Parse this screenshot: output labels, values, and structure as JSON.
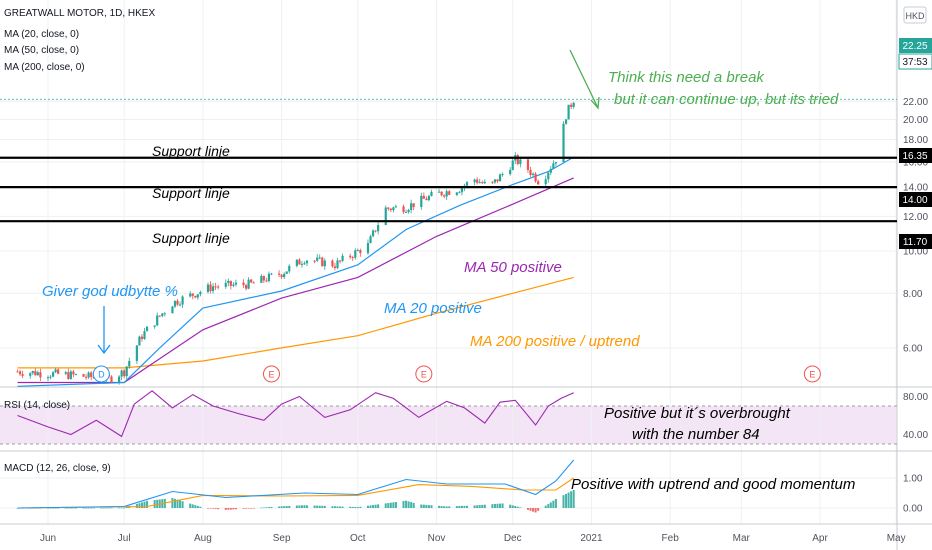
{
  "header": {
    "symbol_line": "GREATWALL MOTOR, 1D, HKEX",
    "ma20": "MA (20, close, 0)",
    "ma50": "MA (50, close, 0)",
    "ma200": "MA (200, close, 0)",
    "currency": "HKD"
  },
  "badges": {
    "price": "22.25",
    "countdown": "37:53",
    "support1": "16.35",
    "support2": "14.00",
    "support3": "11.70"
  },
  "annotations": {
    "support_label": "Support linje",
    "break_line1": "Think this need a break",
    "break_line2": "but it can continue up, but its tried",
    "ma50": "MA 50 positive",
    "ma20": "MA 20 positive",
    "ma200": "MA 200 positive / uptrend",
    "dividend": "Giver god udbytte %",
    "rsi_line1": "Positive but it´s overbrought",
    "rsi_line2": "with the number 84",
    "macd": "Positive with uptrend and good momentum"
  },
  "events": {
    "dividend": "D",
    "earnings": "E"
  },
  "colors": {
    "up": "#26a69a",
    "down": "#ef5350",
    "ma20": "#2196f3",
    "ma50": "#9c27b0",
    "ma200": "#ff9800",
    "support": "#000000",
    "anno_green": "#4caf50",
    "anno_purple": "#9c27b0",
    "anno_blue": "#2196f3",
    "anno_orange": "#ff9800",
    "rsi_band": "#f3e5f5"
  },
  "chart_data": [
    {
      "type": "candlestick",
      "title": "GREATWALL MOTOR, 1D, HKEX",
      "x_ticks": [
        "Jun",
        "Jul",
        "Aug",
        "Sep",
        "Oct",
        "Nov",
        "Dec",
        "2021",
        "Feb",
        "Mar",
        "Apr",
        "May"
      ],
      "y_ticks": [
        "6.00",
        "8.00",
        "10.00",
        "12.00",
        "14.00",
        "16.00",
        "18.00",
        "20.00",
        "22.00"
      ],
      "close_path": [
        [
          "2020-05-20",
          5.3
        ],
        [
          "2020-06-10",
          5.2
        ],
        [
          "2020-06-25",
          5.1
        ],
        [
          "2020-07-01",
          5.3
        ],
        [
          "2020-07-08",
          6.4
        ],
        [
          "2020-07-20",
          7.6
        ],
        [
          "2020-08-05",
          8.3
        ],
        [
          "2020-08-20",
          8.4
        ],
        [
          "2020-09-01",
          8.9
        ],
        [
          "2020-09-10",
          9.6
        ],
        [
          "2020-09-22",
          9.3
        ],
        [
          "2020-10-05",
          10.3
        ],
        [
          "2020-10-12",
          12.5
        ],
        [
          "2020-10-20",
          12.6
        ],
        [
          "2020-11-01",
          13.5
        ],
        [
          "2020-11-10",
          13.9
        ],
        [
          "2020-11-16",
          14.6
        ],
        [
          "2020-11-22",
          14.0
        ],
        [
          "2020-11-28",
          15.2
        ],
        [
          "2020-12-02",
          16.2
        ],
        [
          "2020-12-07",
          15.4
        ],
        [
          "2020-12-12",
          14.3
        ],
        [
          "2020-12-15",
          15.3
        ],
        [
          "2020-12-19",
          16.6
        ],
        [
          "2020-12-22",
          20.5
        ],
        [
          "2020-12-25",
          22.25
        ]
      ],
      "ma20_path": [
        [
          "2020-05-20",
          4.9
        ],
        [
          "2020-07-01",
          5.0
        ],
        [
          "2020-07-15",
          6.0
        ],
        [
          "2020-08-01",
          7.4
        ],
        [
          "2020-09-01",
          8.1
        ],
        [
          "2020-10-01",
          9.3
        ],
        [
          "2020-10-20",
          11.2
        ],
        [
          "2020-11-10",
          12.7
        ],
        [
          "2020-12-01",
          14.2
        ],
        [
          "2020-12-15",
          15.2
        ],
        [
          "2020-12-25",
          16.4
        ]
      ],
      "ma50_path": [
        [
          "2020-05-20",
          5.0
        ],
        [
          "2020-07-01",
          5.0
        ],
        [
          "2020-08-01",
          6.6
        ],
        [
          "2020-09-01",
          7.8
        ],
        [
          "2020-10-01",
          8.7
        ],
        [
          "2020-11-01",
          10.8
        ],
        [
          "2020-12-01",
          12.8
        ],
        [
          "2020-12-25",
          14.7
        ]
      ],
      "ma200_path": [
        [
          "2020-05-20",
          5.4
        ],
        [
          "2020-07-01",
          5.4
        ],
        [
          "2020-08-01",
          5.6
        ],
        [
          "2020-09-01",
          6.0
        ],
        [
          "2020-10-01",
          6.4
        ],
        [
          "2020-11-01",
          7.2
        ],
        [
          "2020-12-01",
          8.0
        ],
        [
          "2020-12-25",
          8.7
        ]
      ],
      "support_levels": [
        16.35,
        14.0,
        11.7
      ],
      "last_price": 22.25,
      "dividend_date": "2020-06-22",
      "earnings_dates": [
        "2020-08-28",
        "2020-10-27",
        "2021-03-29"
      ]
    },
    {
      "type": "line",
      "title": "RSI (14, close)",
      "y_ticks": [
        "40.00",
        "80.00"
      ],
      "band": [
        30,
        70
      ],
      "series": [
        {
          "name": "RSI",
          "points": [
            [
              "2020-05-20",
              60
            ],
            [
              "2020-06-01",
              48
            ],
            [
              "2020-06-10",
              40
            ],
            [
              "2020-06-20",
              55
            ],
            [
              "2020-06-30",
              38
            ],
            [
              "2020-07-05",
              72
            ],
            [
              "2020-07-12",
              86
            ],
            [
              "2020-07-20",
              68
            ],
            [
              "2020-07-28",
              82
            ],
            [
              "2020-08-05",
              70
            ],
            [
              "2020-08-15",
              62
            ],
            [
              "2020-08-25",
              55
            ],
            [
              "2020-09-01",
              72
            ],
            [
              "2020-09-08",
              80
            ],
            [
              "2020-09-18",
              58
            ],
            [
              "2020-09-28",
              66
            ],
            [
              "2020-10-08",
              84
            ],
            [
              "2020-10-15",
              78
            ],
            [
              "2020-10-25",
              58
            ],
            [
              "2020-11-05",
              75
            ],
            [
              "2020-11-12",
              68
            ],
            [
              "2020-11-20",
              52
            ],
            [
              "2020-11-26",
              74
            ],
            [
              "2020-12-02",
              76
            ],
            [
              "2020-12-10",
              50
            ],
            [
              "2020-12-15",
              70
            ],
            [
              "2020-12-20",
              78
            ],
            [
              "2020-12-25",
              84
            ]
          ]
        }
      ]
    },
    {
      "type": "line",
      "title": "MACD (12, 26, close, 9)",
      "y_ticks": [
        "0.00",
        "1.00"
      ],
      "series": [
        {
          "name": "MACD",
          "points": [
            [
              "2020-05-20",
              0.0
            ],
            [
              "2020-07-01",
              0.05
            ],
            [
              "2020-07-20",
              0.55
            ],
            [
              "2020-08-10",
              0.35
            ],
            [
              "2020-09-10",
              0.5
            ],
            [
              "2020-10-01",
              0.45
            ],
            [
              "2020-10-20",
              0.95
            ],
            [
              "2020-11-05",
              0.8
            ],
            [
              "2020-11-28",
              0.8
            ],
            [
              "2020-12-10",
              0.45
            ],
            [
              "2020-12-18",
              0.9
            ],
            [
              "2020-12-25",
              1.6
            ]
          ]
        },
        {
          "name": "Signal",
          "points": [
            [
              "2020-05-20",
              0.0
            ],
            [
              "2020-07-10",
              0.05
            ],
            [
              "2020-08-01",
              0.42
            ],
            [
              "2020-09-01",
              0.4
            ],
            [
              "2020-10-01",
              0.42
            ],
            [
              "2020-10-25",
              0.78
            ],
            [
              "2020-11-15",
              0.72
            ],
            [
              "2020-12-05",
              0.6
            ],
            [
              "2020-12-18",
              0.6
            ],
            [
              "2020-12-25",
              1.0
            ]
          ]
        }
      ]
    }
  ]
}
